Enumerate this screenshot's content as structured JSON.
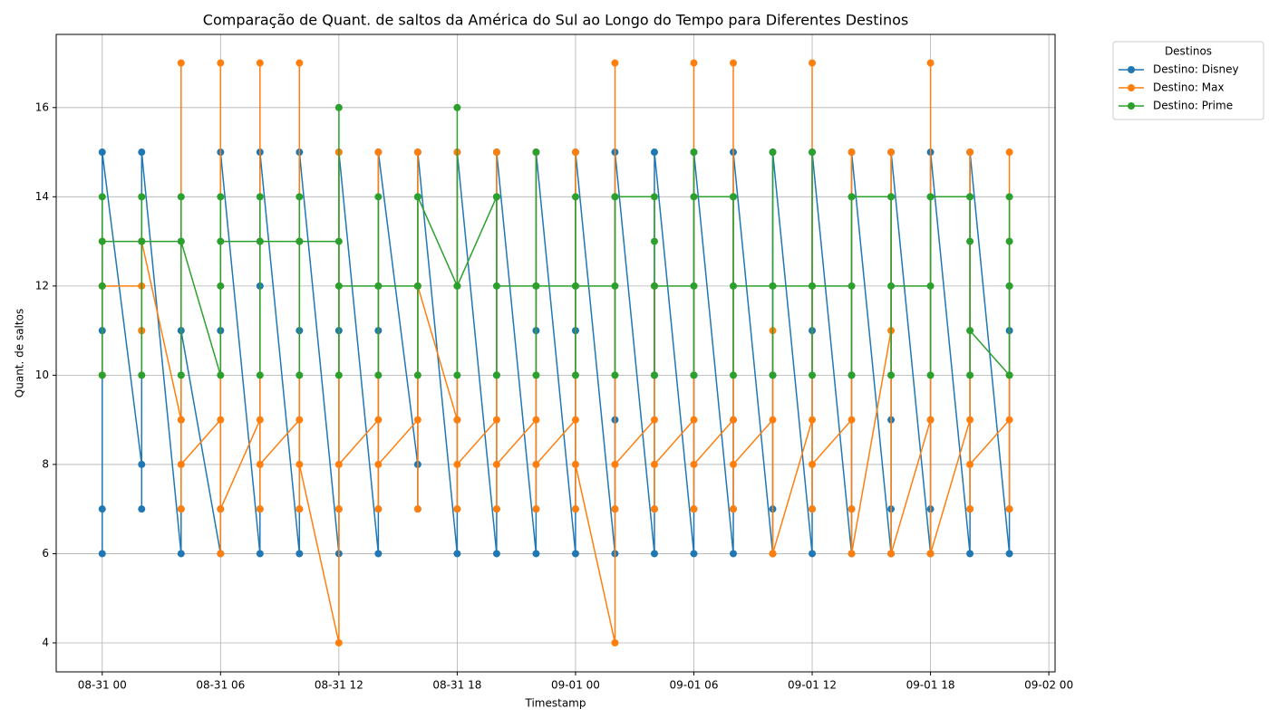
{
  "chart_data": {
    "type": "line",
    "title": "Comparação de Quant. de saltos da América do Sul ao Longo do Tempo para Diferentes Destinos",
    "x_label": "Timestamp",
    "y_label": "Quant. de saltos",
    "legend_title": "Destinos",
    "legend": "upper right",
    "grid": true,
    "x": [
      "08-31 00:00",
      "08-31 00:00",
      "08-31 00:00",
      "08-31 00:00",
      "08-31 02:00",
      "08-31 02:00",
      "08-31 02:00",
      "08-31 02:00",
      "08-31 04:00",
      "08-31 04:00",
      "08-31 04:00",
      "08-31 04:00",
      "08-31 06:00",
      "08-31 06:00",
      "08-31 06:00",
      "08-31 06:00",
      "08-31 08:00",
      "08-31 08:00",
      "08-31 08:00",
      "08-31 08:00",
      "08-31 10:00",
      "08-31 10:00",
      "08-31 10:00",
      "08-31 10:00",
      "08-31 12:00",
      "08-31 12:00",
      "08-31 12:00",
      "08-31 12:00",
      "08-31 14:00",
      "08-31 14:00",
      "08-31 14:00",
      "08-31 14:00",
      "08-31 16:00",
      "08-31 16:00",
      "08-31 16:00",
      "08-31 16:00",
      "08-31 18:00",
      "08-31 18:00",
      "08-31 18:00",
      "08-31 18:00",
      "08-31 20:00",
      "08-31 20:00",
      "08-31 20:00",
      "08-31 20:00",
      "08-31 22:00",
      "08-31 22:00",
      "08-31 22:00",
      "08-31 22:00",
      "09-01 00:00",
      "09-01 00:00",
      "09-01 00:00",
      "09-01 00:00",
      "09-01 02:00",
      "09-01 02:00",
      "09-01 02:00",
      "09-01 02:00",
      "09-01 04:00",
      "09-01 04:00",
      "09-01 04:00",
      "09-01 04:00",
      "09-01 06:00",
      "09-01 06:00",
      "09-01 06:00",
      "09-01 06:00",
      "09-01 08:00",
      "09-01 08:00",
      "09-01 08:00",
      "09-01 08:00",
      "09-01 10:00",
      "09-01 10:00",
      "09-01 10:00",
      "09-01 10:00",
      "09-01 12:00",
      "09-01 12:00",
      "09-01 12:00",
      "09-01 12:00",
      "09-01 14:00",
      "09-01 14:00",
      "09-01 14:00",
      "09-01 14:00",
      "09-01 16:00",
      "09-01 16:00",
      "09-01 16:00",
      "09-01 16:00",
      "09-01 18:00",
      "09-01 18:00",
      "09-01 18:00",
      "09-01 18:00",
      "09-01 20:00",
      "09-01 20:00",
      "09-01 20:00",
      "09-01 20:00",
      "09-01 22:00",
      "09-01 22:00",
      "09-01 22:00",
      "09-01 22:00"
    ],
    "series": [
      {
        "name": "Destino: Disney",
        "color": "#1f77b4",
        "values": [
          6,
          7,
          11,
          15,
          8,
          7,
          11,
          15,
          6,
          7,
          9,
          11,
          6,
          7,
          11,
          15,
          6,
          7,
          12,
          15,
          6,
          7,
          11,
          15,
          6,
          7,
          11,
          15,
          6,
          7,
          11,
          15,
          8,
          7,
          12,
          15,
          6,
          7,
          9,
          15,
          6,
          7,
          10,
          15,
          6,
          7,
          11,
          15,
          6,
          7,
          11,
          15,
          6,
          7,
          9,
          15,
          6,
          7,
          10,
          15,
          6,
          7,
          10,
          15,
          6,
          7,
          9,
          15,
          6,
          7,
          10,
          15,
          6,
          7,
          11,
          15,
          6,
          7,
          10,
          15,
          6,
          7,
          9,
          15,
          6,
          7,
          9,
          15,
          6,
          7,
          14,
          15,
          6,
          7,
          11,
          12
        ]
      },
      {
        "name": "Destino: Max",
        "color": "#ff7f0e",
        "values": [
          12,
          13,
          10,
          12,
          12,
          13,
          11,
          13,
          9,
          17,
          7,
          8,
          9,
          17,
          6,
          7,
          9,
          17,
          7,
          8,
          9,
          17,
          7,
          8,
          4,
          15,
          7,
          8,
          9,
          15,
          7,
          8,
          9,
          15,
          7,
          12,
          9,
          15,
          7,
          8,
          9,
          15,
          7,
          8,
          9,
          15,
          7,
          8,
          9,
          15,
          7,
          8,
          4,
          17,
          7,
          8,
          9,
          12,
          7,
          8,
          9,
          17,
          7,
          8,
          9,
          17,
          7,
          8,
          9,
          11,
          6,
          6,
          9,
          17,
          7,
          8,
          9,
          15,
          7,
          6,
          11,
          15,
          6,
          6,
          9,
          17,
          6,
          6,
          9,
          15,
          7,
          8,
          9,
          15,
          7,
          10
        ]
      },
      {
        "name": "Destino: Prime",
        "color": "#2ca02c",
        "values": [
          10,
          14,
          12,
          13,
          13,
          14,
          10,
          13,
          13,
          14,
          10,
          13,
          10,
          14,
          12,
          13,
          13,
          14,
          10,
          13,
          13,
          14,
          10,
          13,
          13,
          16,
          10,
          12,
          12,
          14,
          10,
          12,
          12,
          14,
          10,
          14,
          12,
          16,
          10,
          12,
          14,
          14,
          10,
          12,
          12,
          15,
          10,
          12,
          12,
          14,
          10,
          12,
          12,
          14,
          10,
          14,
          14,
          13,
          10,
          12,
          12,
          15,
          10,
          14,
          14,
          14,
          10,
          12,
          12,
          15,
          10,
          12,
          12,
          15,
          10,
          12,
          12,
          14,
          10,
          14,
          14,
          14,
          10,
          12,
          12,
          14,
          10,
          14,
          14,
          13,
          10,
          11,
          10,
          14,
          13,
          12
        ]
      }
    ],
    "xlim": [
      "08-30 21:40",
      "09-02 00:19"
    ],
    "xticks": [
      {
        "value": "08-31 00:00",
        "label": "08-31 00"
      },
      {
        "value": "08-31 06:00",
        "label": "08-31 06"
      },
      {
        "value": "08-31 12:00",
        "label": "08-31 12"
      },
      {
        "value": "08-31 18:00",
        "label": "08-31 18"
      },
      {
        "value": "09-01 00:00",
        "label": "09-01 00"
      },
      {
        "value": "09-01 06:00",
        "label": "09-01 06"
      },
      {
        "value": "09-01 12:00",
        "label": "09-01 12"
      },
      {
        "value": "09-01 18:00",
        "label": "09-01 18"
      },
      {
        "value": "09-02 00:00",
        "label": "09-02 00"
      }
    ],
    "ylim": [
      3.35,
      17.64
    ],
    "yticks": [
      4,
      6,
      8,
      10,
      12,
      14,
      16
    ]
  }
}
